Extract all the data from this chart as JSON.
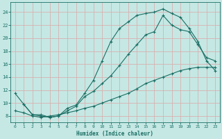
{
  "xlabel": "Humidex (Indice chaleur)",
  "xlim": [
    -0.5,
    23.5
  ],
  "ylim": [
    7,
    25.5
  ],
  "yticks": [
    8,
    10,
    12,
    14,
    16,
    18,
    20,
    22,
    24
  ],
  "xticks": [
    0,
    1,
    2,
    3,
    4,
    5,
    6,
    7,
    8,
    9,
    10,
    11,
    12,
    13,
    14,
    15,
    16,
    17,
    18,
    19,
    20,
    21,
    22,
    23
  ],
  "bg_color": "#c5e8e4",
  "line_color": "#1a6e64",
  "grid_color": "#d8b0b0",
  "curve1_x": [
    0,
    1,
    2,
    3,
    4,
    5,
    6,
    7,
    8,
    9,
    10,
    11,
    12,
    13,
    14,
    15,
    16,
    17,
    18,
    19,
    20,
    21,
    22,
    23
  ],
  "curve1_y": [
    11.5,
    9.8,
    8.2,
    8.2,
    7.8,
    8.0,
    9.2,
    9.7,
    11.5,
    13.5,
    16.5,
    19.5,
    21.5,
    22.5,
    23.5,
    23.8,
    24.0,
    24.5,
    23.8,
    23.2,
    21.5,
    19.5,
    16.5,
    15.0
  ],
  "curve2_x": [
    1,
    2,
    3,
    4,
    5,
    6,
    7,
    8,
    9,
    10,
    11,
    12,
    13,
    14,
    15,
    16,
    17,
    18,
    19,
    20,
    21,
    22,
    23
  ],
  "curve2_y": [
    9.8,
    8.2,
    8.0,
    7.8,
    8.0,
    8.8,
    9.5,
    11.0,
    11.8,
    13.0,
    14.2,
    15.8,
    17.5,
    19.0,
    20.5,
    21.0,
    23.5,
    22.0,
    21.3,
    21.0,
    19.0,
    17.0,
    16.5
  ],
  "curve3_x": [
    0,
    1,
    2,
    3,
    4,
    5,
    6,
    7,
    8,
    9,
    10,
    11,
    12,
    13,
    14,
    15,
    16,
    17,
    18,
    19,
    20,
    21,
    22,
    23
  ],
  "curve3_y": [
    8.8,
    8.5,
    8.0,
    7.8,
    8.0,
    8.2,
    8.5,
    8.8,
    9.2,
    9.5,
    10.0,
    10.5,
    11.0,
    11.5,
    12.2,
    13.0,
    13.5,
    14.0,
    14.5,
    15.0,
    15.3,
    15.5,
    15.5,
    15.5
  ]
}
